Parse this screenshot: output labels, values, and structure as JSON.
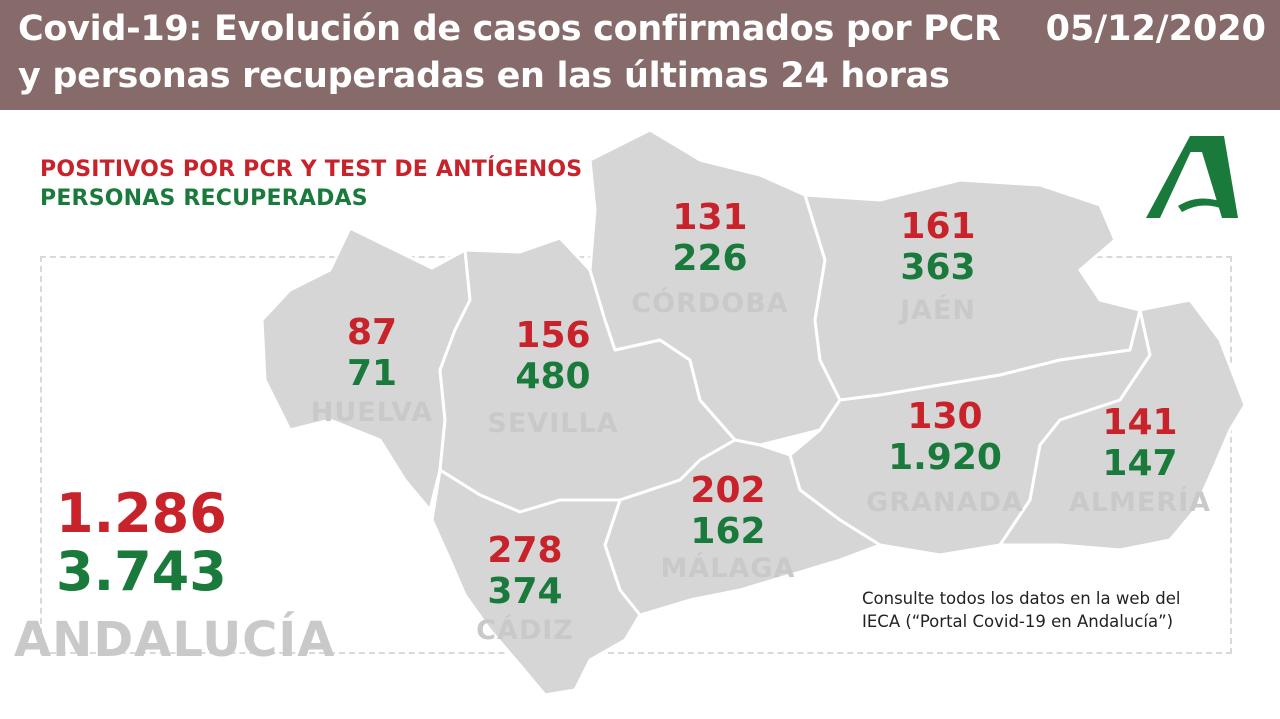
{
  "header": {
    "title": "Covid-19: Evolución de casos confirmados por PCR y personas recuperadas en las últimas 24 horas",
    "date": "05/12/2020"
  },
  "legend": {
    "positive_label": "POSITIVOS POR PCR Y TEST DE ANTÍGENOS",
    "recovered_label": "PERSONAS RECUPERADAS"
  },
  "colors": {
    "header_bg": "#876b6b",
    "positive": "#c8222b",
    "recovered": "#1a7a3c",
    "map_fill": "#d6d6d6",
    "province_label": "#c9c9c9",
    "logo": "#1a7a3c"
  },
  "logo": {
    "icon": "junta-de-andalucia-logo"
  },
  "provinces": {
    "huelva": {
      "name": "HUELVA",
      "positive": "87",
      "recovered": "71"
    },
    "sevilla": {
      "name": "SEVILLA",
      "positive": "156",
      "recovered": "480"
    },
    "cordoba": {
      "name": "CÓRDOBA",
      "positive": "131",
      "recovered": "226"
    },
    "jaen": {
      "name": "JAÉN",
      "positive": "161",
      "recovered": "363"
    },
    "granada": {
      "name": "GRANADA",
      "positive": "130",
      "recovered": "1.920"
    },
    "almeria": {
      "name": "ALMERÍA",
      "positive": "141",
      "recovered": "147"
    },
    "malaga": {
      "name": "MÁLAGA",
      "positive": "202",
      "recovered": "162"
    },
    "cadiz": {
      "name": "CÁDIZ",
      "positive": "278",
      "recovered": "374"
    }
  },
  "total": {
    "name": "ANDALUCÍA",
    "positive": "1.286",
    "recovered": "3.743"
  },
  "note": "Consulte todos los datos en la web del IECA (“Portal Covid-19 en Andalucía”)"
}
